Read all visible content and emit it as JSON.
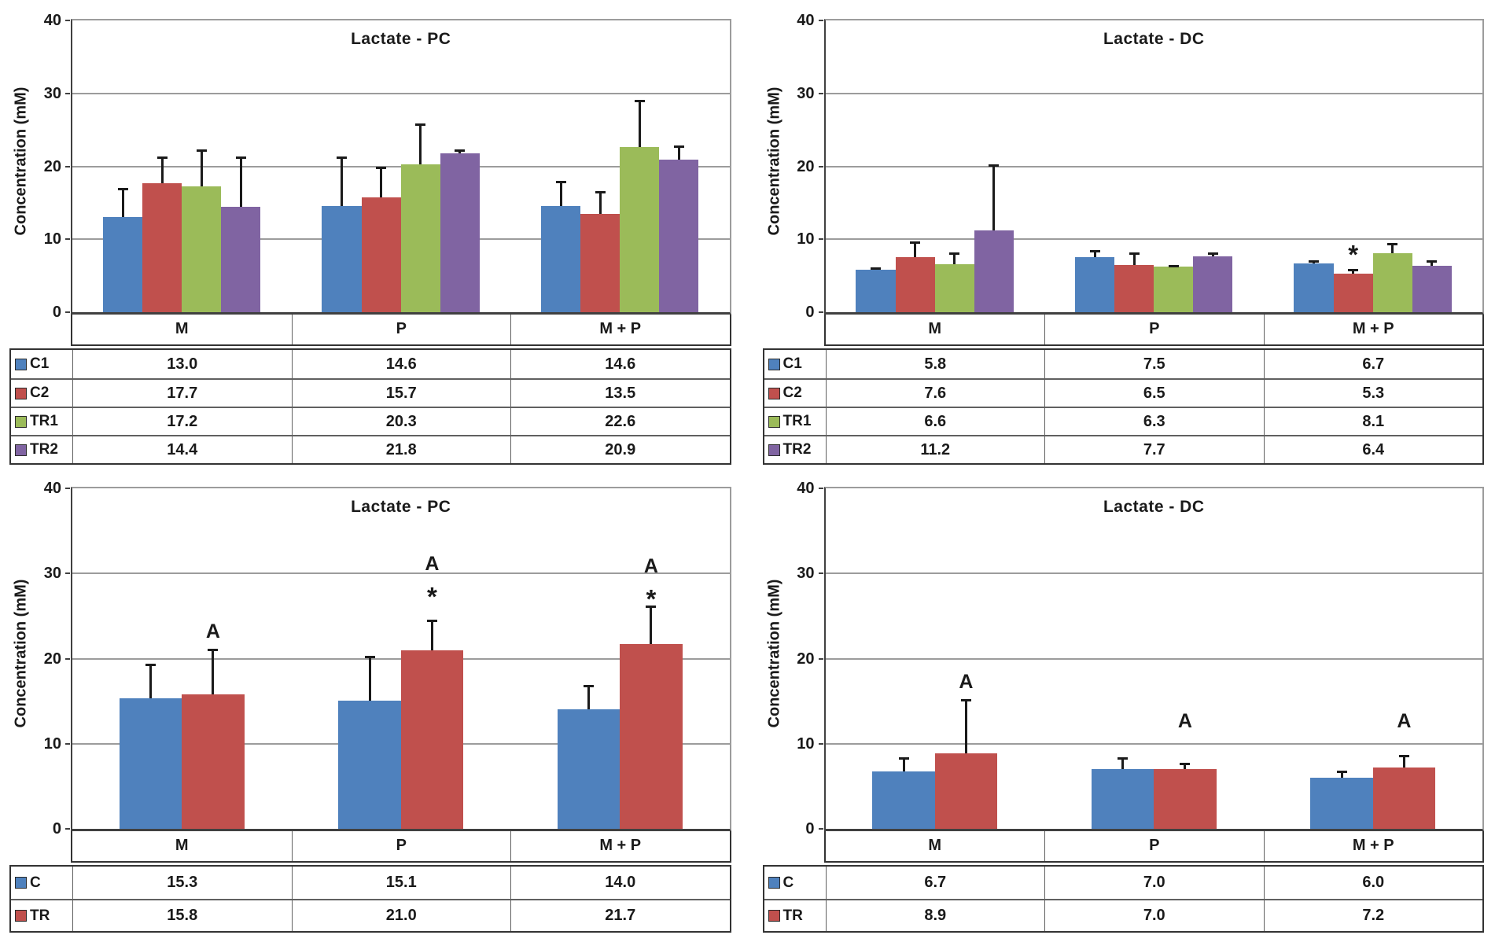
{
  "figure": {
    "background": "#ffffff"
  },
  "palette": {
    "blue": "#4F81BD",
    "red": "#C0504D",
    "green": "#9BBB59",
    "purple": "#8064A2",
    "gridline": "#9c9c9c",
    "axis": "#404040",
    "table_outer_border": "#333333",
    "table_inner_border": "#606060",
    "text": "#1a1a1a"
  },
  "chart_data": [
    {
      "id": "lactate-pc-four-groups",
      "position": "top-left",
      "type": "bar",
      "title": "Lactate - PC",
      "ylabel": "Concentration (mM)",
      "ylim": [
        0,
        40
      ],
      "yticks": [
        0,
        10,
        20,
        30,
        40
      ],
      "grid": true,
      "legend_position": "table-left",
      "xlabel": "",
      "categories": [
        "M",
        "P",
        "M + P"
      ],
      "series": [
        {
          "name": "C1",
          "color": "#4F81BD",
          "values": [
            "13.0",
            "14.6",
            "14.6"
          ],
          "err_top": [
            17.0,
            21.3,
            18.0
          ],
          "marks": [
            [],
            [],
            []
          ]
        },
        {
          "name": "C2",
          "color": "#C0504D",
          "values": [
            "17.7",
            "15.7",
            "13.5"
          ],
          "err_top": [
            21.3,
            20.0,
            16.6
          ],
          "marks": [
            [],
            [],
            []
          ]
        },
        {
          "name": "TR1",
          "color": "#9BBB59",
          "values": [
            "17.2",
            "20.3",
            "22.6"
          ],
          "err_top": [
            22.3,
            25.9,
            29.1
          ],
          "marks": [
            [],
            [],
            []
          ]
        },
        {
          "name": "TR2",
          "color": "#8064A2",
          "values": [
            "14.4",
            "21.8",
            "20.9"
          ],
          "err_top": [
            21.3,
            22.3,
            22.9
          ],
          "marks": [
            [],
            [],
            []
          ]
        }
      ]
    },
    {
      "id": "lactate-dc-four-groups",
      "position": "top-right",
      "type": "bar",
      "title": "Lactate - DC",
      "ylabel": "Concentration (mM)",
      "ylim": [
        0,
        40
      ],
      "yticks": [
        0,
        10,
        20,
        30,
        40
      ],
      "grid": true,
      "legend_position": "table-left",
      "xlabel": "",
      "categories": [
        "M",
        "P",
        "M + P"
      ],
      "series": [
        {
          "name": "C1",
          "color": "#4F81BD",
          "values": [
            "5.8",
            "7.5",
            "6.7"
          ],
          "err_top": [
            6.2,
            8.5,
            7.1
          ],
          "marks": [
            [],
            [],
            []
          ]
        },
        {
          "name": "C2",
          "color": "#C0504D",
          "values": [
            "7.6",
            "6.5",
            "5.3"
          ],
          "err_top": [
            9.7,
            8.2,
            5.9
          ],
          "marks": [
            [],
            [],
            [
              {
                "text": "*",
                "y": 7.6
              }
            ]
          ]
        },
        {
          "name": "TR1",
          "color": "#9BBB59",
          "values": [
            "6.6",
            "6.3",
            "8.1"
          ],
          "err_top": [
            8.2,
            6.5,
            9.5
          ],
          "marks": [
            [],
            [],
            []
          ]
        },
        {
          "name": "TR2",
          "color": "#8064A2",
          "values": [
            "11.2",
            "7.7",
            "6.4"
          ],
          "err_top": [
            20.3,
            8.2,
            7.1
          ],
          "marks": [
            [],
            [],
            []
          ]
        }
      ]
    },
    {
      "id": "lactate-pc-two-groups",
      "position": "bottom-left",
      "type": "bar",
      "title": "Lactate - PC",
      "ylabel": "Concentration (mM)",
      "ylim": [
        0,
        40
      ],
      "yticks": [
        0,
        10,
        20,
        30,
        40
      ],
      "grid": true,
      "legend_position": "table-left",
      "xlabel": "",
      "categories": [
        "M",
        "P",
        "M + P"
      ],
      "series": [
        {
          "name": "C",
          "color": "#4F81BD",
          "values": [
            "15.3",
            "15.1",
            "14.0"
          ],
          "err_top": [
            19.4,
            20.3,
            16.9
          ],
          "marks": [
            [],
            [],
            []
          ]
        },
        {
          "name": "TR",
          "color": "#C0504D",
          "values": [
            "15.8",
            "21.0",
            "21.7"
          ],
          "err_top": [
            21.2,
            24.6,
            26.2
          ],
          "marks": [
            [
              {
                "text": "A",
                "y": 22.0
              }
            ],
            [
              {
                "text": "*",
                "y": 27.0
              },
              {
                "text": "A",
                "y": 29.9
              }
            ],
            [
              {
                "text": "*",
                "y": 26.7
              },
              {
                "text": "A",
                "y": 29.7
              }
            ]
          ]
        }
      ]
    },
    {
      "id": "lactate-dc-two-groups",
      "position": "bottom-right",
      "type": "bar",
      "title": "Lactate - DC",
      "ylabel": "Concentration (mM)",
      "ylim": [
        0,
        40
      ],
      "yticks": [
        0,
        10,
        20,
        30,
        40
      ],
      "grid": true,
      "legend_position": "table-left",
      "xlabel": "",
      "categories": [
        "M",
        "P",
        "M + P"
      ],
      "series": [
        {
          "name": "C",
          "color": "#4F81BD",
          "values": [
            "6.7",
            "7.0",
            "6.0"
          ],
          "err_top": [
            8.4,
            8.4,
            6.8
          ],
          "marks": [
            [],
            [],
            []
          ]
        },
        {
          "name": "TR",
          "color": "#C0504D",
          "values": [
            "8.9",
            "7.0",
            "7.2"
          ],
          "err_top": [
            15.2,
            7.8,
            8.7
          ],
          "marks": [
            [
              {
                "text": "A",
                "y": 16.1
              }
            ],
            [
              {
                "text": "A",
                "y": 11.5
              }
            ],
            [
              {
                "text": "A",
                "y": 11.5
              }
            ]
          ]
        }
      ]
    }
  ]
}
